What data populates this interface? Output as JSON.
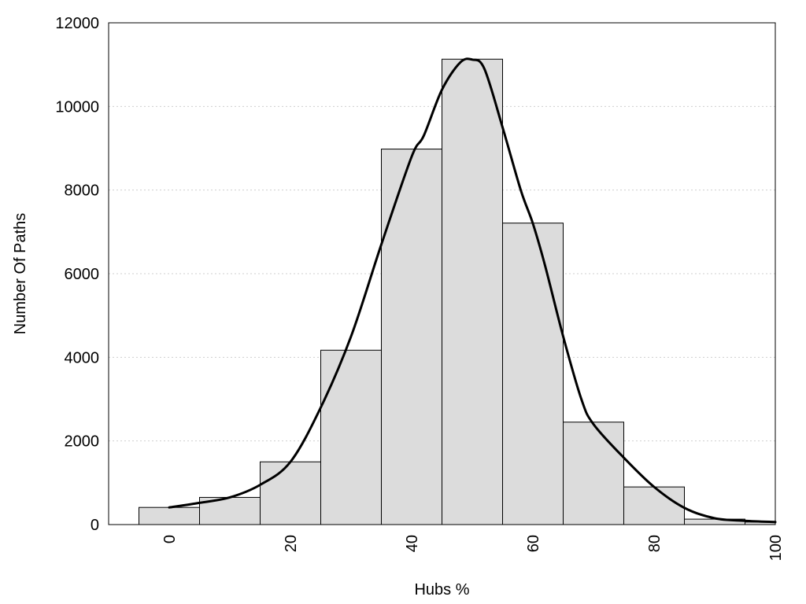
{
  "chart_data": {
    "type": "bar",
    "xlabel": "Hubs %",
    "ylabel": "Number Of Paths",
    "xlim": [
      -10,
      100
    ],
    "ylim": [
      0,
      12000
    ],
    "grid": true,
    "bar_color": "#dcdcdc",
    "curve_color": "#000000",
    "x_ticks": [
      0,
      20,
      40,
      60,
      80,
      100
    ],
    "y_ticks": [
      0,
      2000,
      4000,
      6000,
      8000,
      10000,
      12000
    ],
    "bin_width": 10,
    "bins": [
      {
        "center": 0,
        "value": 410
      },
      {
        "center": 10,
        "value": 650
      },
      {
        "center": 20,
        "value": 1500
      },
      {
        "center": 30,
        "value": 4170
      },
      {
        "center": 40,
        "value": 8980
      },
      {
        "center": 50,
        "value": 11130
      },
      {
        "center": 60,
        "value": 7210
      },
      {
        "center": 70,
        "value": 2450
      },
      {
        "center": 80,
        "value": 900
      },
      {
        "center": 90,
        "value": 130
      },
      {
        "center": 100,
        "value": 60
      }
    ],
    "series": [
      {
        "type": "line",
        "x": [
          0,
          5,
          10,
          15,
          20,
          25,
          30,
          35,
          40,
          42,
          45,
          48,
          50,
          52,
          55,
          58,
          60,
          62,
          65,
          68,
          70,
          75,
          80,
          85,
          90,
          95,
          100
        ],
        "y": [
          410,
          520,
          650,
          950,
          1500,
          2800,
          4500,
          6700,
          8800,
          9300,
          10400,
          11050,
          11120,
          10900,
          9500,
          8000,
          7200,
          6200,
          4500,
          3000,
          2400,
          1600,
          900,
          400,
          150,
          90,
          60
        ]
      }
    ]
  }
}
